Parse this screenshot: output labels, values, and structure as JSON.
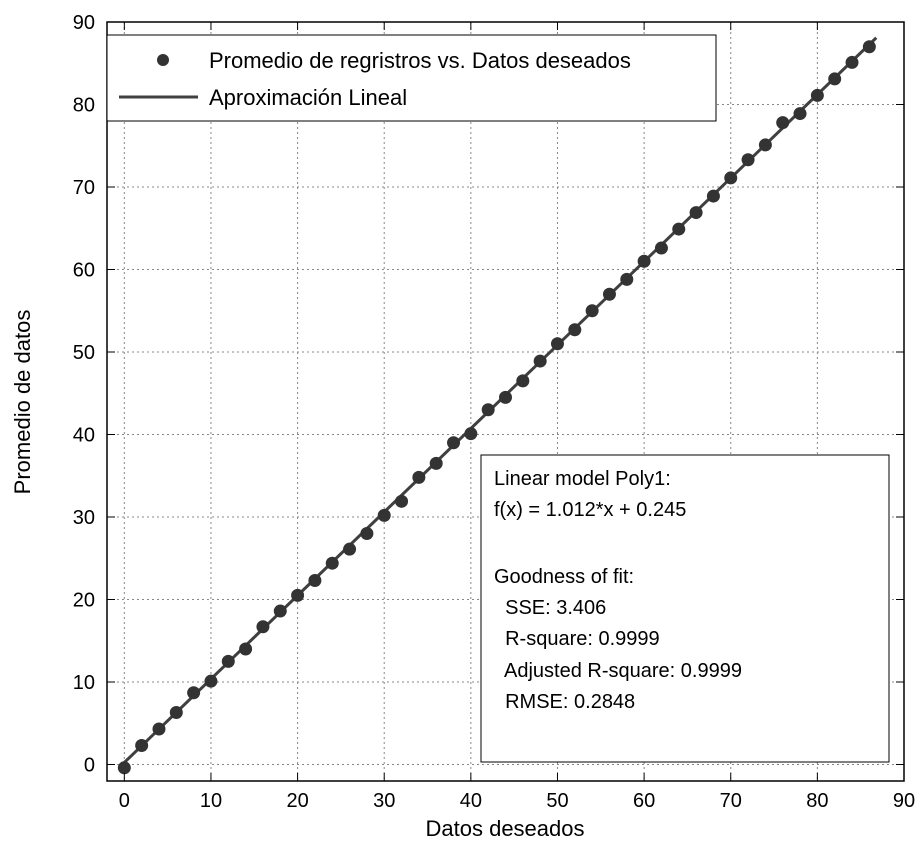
{
  "chart_data": {
    "type": "scatter",
    "title": "",
    "xlabel": "Datos deseados",
    "ylabel": "Promedio de datos",
    "xlim": [
      -2,
      90
    ],
    "ylim": [
      -2,
      90
    ],
    "xticks": [
      0,
      10,
      20,
      30,
      40,
      50,
      60,
      70,
      80,
      90
    ],
    "yticks": [
      0,
      10,
      20,
      30,
      40,
      50,
      60,
      70,
      80,
      90
    ],
    "grid": true,
    "legend_position": "top-left",
    "series": [
      {
        "name": "Promedio de regristros vs. Datos deseados",
        "kind": "scatter",
        "color": "#333333",
        "x": [
          0,
          2,
          4,
          6,
          8,
          10,
          12,
          14,
          16,
          18,
          20,
          22,
          24,
          26,
          28,
          30,
          32,
          34,
          36,
          38,
          40,
          42,
          44,
          46,
          48,
          50,
          52,
          54,
          56,
          58,
          60,
          62,
          64,
          66,
          68,
          70,
          72,
          74,
          76,
          78,
          80,
          82,
          84,
          86
        ],
        "y": [
          -0.4,
          2.3,
          4.3,
          6.3,
          8.7,
          10.1,
          12.5,
          14.0,
          16.7,
          18.6,
          20.5,
          22.3,
          24.4,
          26.1,
          28.0,
          30.2,
          31.9,
          34.8,
          36.5,
          39.0,
          40.1,
          43.0,
          44.5,
          46.5,
          48.9,
          51.0,
          52.7,
          55.0,
          57.0,
          58.8,
          61.0,
          62.6,
          64.9,
          66.9,
          68.9,
          71.1,
          73.3,
          75.1,
          77.8,
          78.9,
          81.1,
          83.1,
          85.1,
          87.0
        ]
      },
      {
        "name": "Aproximación Lineal",
        "kind": "line",
        "color": "#404040",
        "x": [
          0,
          86.8
        ],
        "y": [
          0.245,
          88.09
        ]
      }
    ],
    "annotation": {
      "lines": [
        "Linear model Poly1:",
        "f(x) = 1.012*x + 0.245",
        "",
        "Goodness of fit:",
        "  SSE: 3.406",
        "  R-square: 0.9999",
        "  Adjusted R-square: 0.9999",
        "  RMSE: 0.2848"
      ]
    }
  }
}
